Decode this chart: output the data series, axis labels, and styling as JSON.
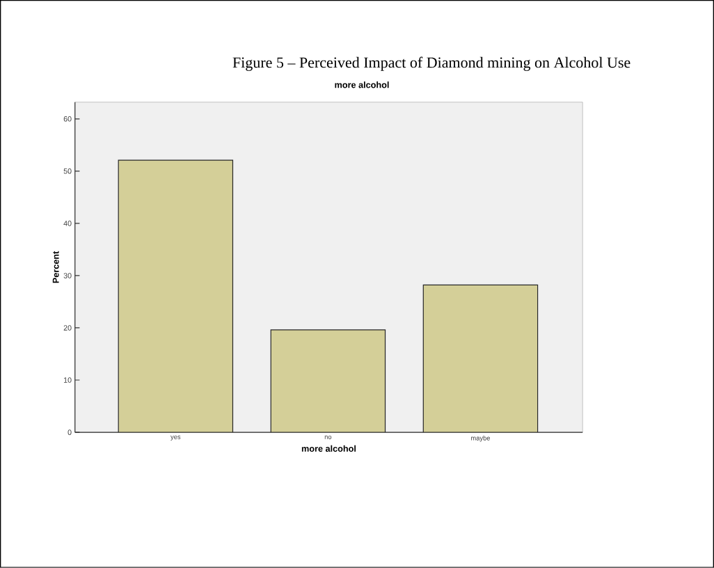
{
  "chart_data": {
    "type": "bar",
    "title": "Figure 5 – Perceived Impact of Diamond mining on Alcohol Use",
    "subtitle": "more alcohol",
    "xlabel": "more alcohol",
    "ylabel": "Percent",
    "categories": [
      "yes",
      "no",
      "maybe"
    ],
    "values": [
      52.1,
      19.6,
      28.2
    ],
    "color": "#d4cf98",
    "ylim": [
      0,
      63.2
    ],
    "yticks": [
      0,
      10,
      20,
      30,
      40,
      50,
      60
    ]
  }
}
